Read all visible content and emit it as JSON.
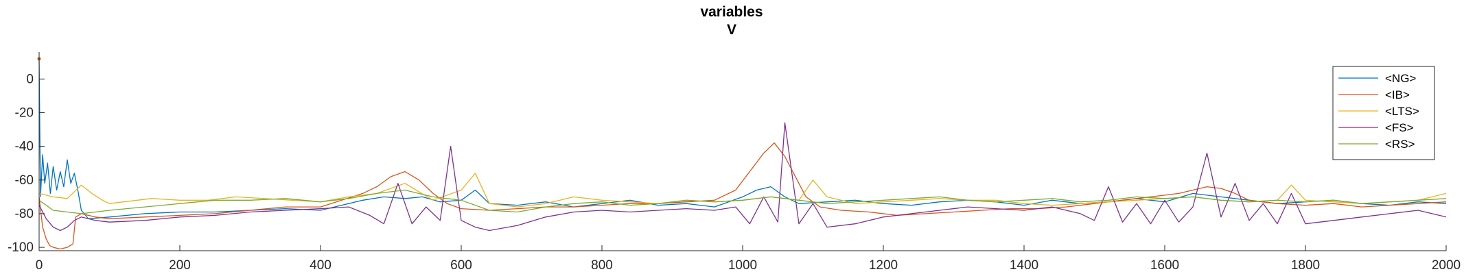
{
  "chart_data": {
    "type": "line",
    "title": "variables",
    "subtitle": "V",
    "xlabel": "",
    "ylabel": "",
    "xlim": [
      0,
      2000
    ],
    "ylim": [
      -102,
      16
    ],
    "xticks": [
      0,
      200,
      400,
      600,
      800,
      1000,
      1200,
      1400,
      1600,
      1800,
      2000
    ],
    "yticks": [
      -100,
      -80,
      -60,
      -40,
      -20,
      0
    ],
    "legend_position": "top-right",
    "grid": false,
    "series": [
      {
        "name": "<NG>",
        "color": "#0072BD",
        "points": [
          [
            0,
            12
          ],
          [
            2,
            -70
          ],
          [
            5,
            -45
          ],
          [
            8,
            -62
          ],
          [
            12,
            -50
          ],
          [
            16,
            -68
          ],
          [
            20,
            -52
          ],
          [
            25,
            -66
          ],
          [
            30,
            -55
          ],
          [
            35,
            -64
          ],
          [
            40,
            -48
          ],
          [
            45,
            -62
          ],
          [
            50,
            -56
          ],
          [
            55,
            -66
          ],
          [
            60,
            -78
          ],
          [
            70,
            -83
          ],
          [
            100,
            -82
          ],
          [
            150,
            -80
          ],
          [
            200,
            -79
          ],
          [
            250,
            -79
          ],
          [
            300,
            -78
          ],
          [
            350,
            -77
          ],
          [
            400,
            -78
          ],
          [
            430,
            -75
          ],
          [
            460,
            -72
          ],
          [
            490,
            -70
          ],
          [
            520,
            -71
          ],
          [
            545,
            -70
          ],
          [
            570,
            -73
          ],
          [
            600,
            -72
          ],
          [
            620,
            -66
          ],
          [
            640,
            -74
          ],
          [
            680,
            -75
          ],
          [
            720,
            -73
          ],
          [
            760,
            -76
          ],
          [
            800,
            -74
          ],
          [
            840,
            -72
          ],
          [
            880,
            -75
          ],
          [
            920,
            -74
          ],
          [
            960,
            -76
          ],
          [
            1000,
            -70
          ],
          [
            1020,
            -66
          ],
          [
            1040,
            -64
          ],
          [
            1060,
            -70
          ],
          [
            1080,
            -74
          ],
          [
            1120,
            -73
          ],
          [
            1160,
            -72
          ],
          [
            1200,
            -74
          ],
          [
            1240,
            -75
          ],
          [
            1280,
            -73
          ],
          [
            1320,
            -72
          ],
          [
            1360,
            -73
          ],
          [
            1400,
            -75
          ],
          [
            1440,
            -72
          ],
          [
            1480,
            -74
          ],
          [
            1520,
            -73
          ],
          [
            1560,
            -71
          ],
          [
            1600,
            -73
          ],
          [
            1640,
            -68
          ],
          [
            1680,
            -70
          ],
          [
            1720,
            -72
          ],
          [
            1760,
            -74
          ],
          [
            1800,
            -73
          ],
          [
            1840,
            -72
          ],
          [
            1880,
            -74
          ],
          [
            1920,
            -75
          ],
          [
            1960,
            -73
          ],
          [
            2000,
            -74
          ]
        ]
      },
      {
        "name": "<IB>",
        "color": "#D95319",
        "points": [
          [
            0,
            -70
          ],
          [
            5,
            -88
          ],
          [
            10,
            -95
          ],
          [
            15,
            -99
          ],
          [
            20,
            -100
          ],
          [
            30,
            -101
          ],
          [
            40,
            -100
          ],
          [
            48,
            -98
          ],
          [
            52,
            -82
          ],
          [
            60,
            -80
          ],
          [
            80,
            -82
          ],
          [
            100,
            -83
          ],
          [
            150,
            -82
          ],
          [
            200,
            -81
          ],
          [
            250,
            -80
          ],
          [
            300,
            -78
          ],
          [
            350,
            -76
          ],
          [
            400,
            -76
          ],
          [
            430,
            -72
          ],
          [
            460,
            -68
          ],
          [
            480,
            -64
          ],
          [
            500,
            -58
          ],
          [
            520,
            -55
          ],
          [
            540,
            -60
          ],
          [
            560,
            -68
          ],
          [
            580,
            -74
          ],
          [
            600,
            -77
          ],
          [
            640,
            -78
          ],
          [
            680,
            -77
          ],
          [
            720,
            -76
          ],
          [
            760,
            -76
          ],
          [
            800,
            -75
          ],
          [
            840,
            -74
          ],
          [
            880,
            -74
          ],
          [
            920,
            -73
          ],
          [
            960,
            -72
          ],
          [
            990,
            -66
          ],
          [
            1010,
            -55
          ],
          [
            1030,
            -44
          ],
          [
            1045,
            -38
          ],
          [
            1060,
            -46
          ],
          [
            1075,
            -58
          ],
          [
            1090,
            -70
          ],
          [
            1110,
            -76
          ],
          [
            1140,
            -78
          ],
          [
            1180,
            -79
          ],
          [
            1220,
            -81
          ],
          [
            1260,
            -80
          ],
          [
            1300,
            -79
          ],
          [
            1340,
            -78
          ],
          [
            1380,
            -77
          ],
          [
            1420,
            -77
          ],
          [
            1460,
            -76
          ],
          [
            1500,
            -74
          ],
          [
            1540,
            -72
          ],
          [
            1580,
            -70
          ],
          [
            1620,
            -68
          ],
          [
            1640,
            -66
          ],
          [
            1660,
            -64
          ],
          [
            1680,
            -65
          ],
          [
            1700,
            -68
          ],
          [
            1720,
            -72
          ],
          [
            1760,
            -74
          ],
          [
            1800,
            -75
          ],
          [
            1840,
            -74
          ],
          [
            1880,
            -76
          ],
          [
            1920,
            -75
          ],
          [
            1960,
            -74
          ],
          [
            2000,
            -73
          ]
        ]
      },
      {
        "name": "<LTS>",
        "color": "#EDB120",
        "points": [
          [
            0,
            -68
          ],
          [
            20,
            -70
          ],
          [
            40,
            -71
          ],
          [
            60,
            -63
          ],
          [
            75,
            -68
          ],
          [
            90,
            -72
          ],
          [
            100,
            -74
          ],
          [
            120,
            -73
          ],
          [
            160,
            -71
          ],
          [
            200,
            -72
          ],
          [
            240,
            -72
          ],
          [
            280,
            -70
          ],
          [
            320,
            -71
          ],
          [
            360,
            -72
          ],
          [
            400,
            -73
          ],
          [
            440,
            -70
          ],
          [
            480,
            -68
          ],
          [
            520,
            -62
          ],
          [
            560,
            -72
          ],
          [
            600,
            -66
          ],
          [
            620,
            -56
          ],
          [
            640,
            -74
          ],
          [
            680,
            -76
          ],
          [
            720,
            -74
          ],
          [
            760,
            -70
          ],
          [
            800,
            -72
          ],
          [
            840,
            -73
          ],
          [
            880,
            -74
          ],
          [
            920,
            -72
          ],
          [
            960,
            -73
          ],
          [
            1000,
            -72
          ],
          [
            1040,
            -70
          ],
          [
            1080,
            -72
          ],
          [
            1100,
            -60
          ],
          [
            1120,
            -70
          ],
          [
            1160,
            -74
          ],
          [
            1200,
            -73
          ],
          [
            1240,
            -72
          ],
          [
            1280,
            -71
          ],
          [
            1320,
            -72
          ],
          [
            1360,
            -72
          ],
          [
            1400,
            -74
          ],
          [
            1440,
            -75
          ],
          [
            1480,
            -74
          ],
          [
            1520,
            -73
          ],
          [
            1560,
            -72
          ],
          [
            1600,
            -71
          ],
          [
            1640,
            -70
          ],
          [
            1680,
            -72
          ],
          [
            1720,
            -73
          ],
          [
            1760,
            -72
          ],
          [
            1780,
            -63
          ],
          [
            1800,
            -72
          ],
          [
            1840,
            -73
          ],
          [
            1880,
            -74
          ],
          [
            1920,
            -73
          ],
          [
            1960,
            -72
          ],
          [
            2000,
            -68
          ]
        ]
      },
      {
        "name": "<FS>",
        "color": "#7E2F8E",
        "points": [
          [
            0,
            -75
          ],
          [
            10,
            -83
          ],
          [
            20,
            -88
          ],
          [
            30,
            -90
          ],
          [
            40,
            -88
          ],
          [
            50,
            -84
          ],
          [
            60,
            -82
          ],
          [
            80,
            -84
          ],
          [
            100,
            -85
          ],
          [
            150,
            -84
          ],
          [
            200,
            -82
          ],
          [
            250,
            -81
          ],
          [
            300,
            -79
          ],
          [
            350,
            -78
          ],
          [
            400,
            -77
          ],
          [
            440,
            -76
          ],
          [
            470,
            -81
          ],
          [
            490,
            -86
          ],
          [
            510,
            -62
          ],
          [
            530,
            -86
          ],
          [
            550,
            -76
          ],
          [
            570,
            -84
          ],
          [
            585,
            -40
          ],
          [
            600,
            -84
          ],
          [
            620,
            -88
          ],
          [
            640,
            -90
          ],
          [
            680,
            -87
          ],
          [
            720,
            -82
          ],
          [
            760,
            -79
          ],
          [
            800,
            -78
          ],
          [
            840,
            -79
          ],
          [
            880,
            -78
          ],
          [
            920,
            -77
          ],
          [
            960,
            -78
          ],
          [
            990,
            -76
          ],
          [
            1010,
            -86
          ],
          [
            1030,
            -70
          ],
          [
            1050,
            -85
          ],
          [
            1060,
            -26
          ],
          [
            1080,
            -86
          ],
          [
            1100,
            -74
          ],
          [
            1120,
            -88
          ],
          [
            1160,
            -86
          ],
          [
            1200,
            -82
          ],
          [
            1240,
            -80
          ],
          [
            1280,
            -78
          ],
          [
            1320,
            -76
          ],
          [
            1360,
            -77
          ],
          [
            1400,
            -78
          ],
          [
            1440,
            -76
          ],
          [
            1480,
            -80
          ],
          [
            1500,
            -84
          ],
          [
            1520,
            -64
          ],
          [
            1540,
            -85
          ],
          [
            1560,
            -74
          ],
          [
            1580,
            -86
          ],
          [
            1600,
            -72
          ],
          [
            1620,
            -85
          ],
          [
            1640,
            -76
          ],
          [
            1660,
            -44
          ],
          [
            1680,
            -82
          ],
          [
            1700,
            -62
          ],
          [
            1720,
            -84
          ],
          [
            1740,
            -74
          ],
          [
            1760,
            -86
          ],
          [
            1780,
            -68
          ],
          [
            1800,
            -86
          ],
          [
            1840,
            -84
          ],
          [
            1880,
            -82
          ],
          [
            1920,
            -80
          ],
          [
            1960,
            -78
          ],
          [
            2000,
            -82
          ]
        ]
      },
      {
        "name": "<RS>",
        "color": "#77AC30",
        "points": [
          [
            0,
            -72
          ],
          [
            20,
            -78
          ],
          [
            40,
            -79
          ],
          [
            60,
            -80
          ],
          [
            80,
            -79
          ],
          [
            100,
            -78
          ],
          [
            150,
            -76
          ],
          [
            200,
            -74
          ],
          [
            250,
            -72
          ],
          [
            300,
            -72
          ],
          [
            350,
            -71
          ],
          [
            400,
            -73
          ],
          [
            440,
            -71
          ],
          [
            480,
            -68
          ],
          [
            520,
            -66
          ],
          [
            560,
            -70
          ],
          [
            600,
            -72
          ],
          [
            640,
            -78
          ],
          [
            680,
            -79
          ],
          [
            720,
            -76
          ],
          [
            760,
            -74
          ],
          [
            800,
            -73
          ],
          [
            840,
            -75
          ],
          [
            880,
            -74
          ],
          [
            920,
            -72
          ],
          [
            960,
            -73
          ],
          [
            1000,
            -72
          ],
          [
            1040,
            -70
          ],
          [
            1080,
            -72
          ],
          [
            1120,
            -74
          ],
          [
            1160,
            -73
          ],
          [
            1200,
            -72
          ],
          [
            1240,
            -71
          ],
          [
            1280,
            -70
          ],
          [
            1320,
            -72
          ],
          [
            1360,
            -73
          ],
          [
            1400,
            -72
          ],
          [
            1440,
            -71
          ],
          [
            1480,
            -73
          ],
          [
            1520,
            -72
          ],
          [
            1560,
            -70
          ],
          [
            1600,
            -71
          ],
          [
            1640,
            -70
          ],
          [
            1680,
            -72
          ],
          [
            1720,
            -73
          ],
          [
            1760,
            -72
          ],
          [
            1800,
            -73
          ],
          [
            1840,
            -72
          ],
          [
            1880,
            -74
          ],
          [
            1920,
            -73
          ],
          [
            1960,
            -72
          ],
          [
            2000,
            -71
          ]
        ]
      }
    ]
  }
}
